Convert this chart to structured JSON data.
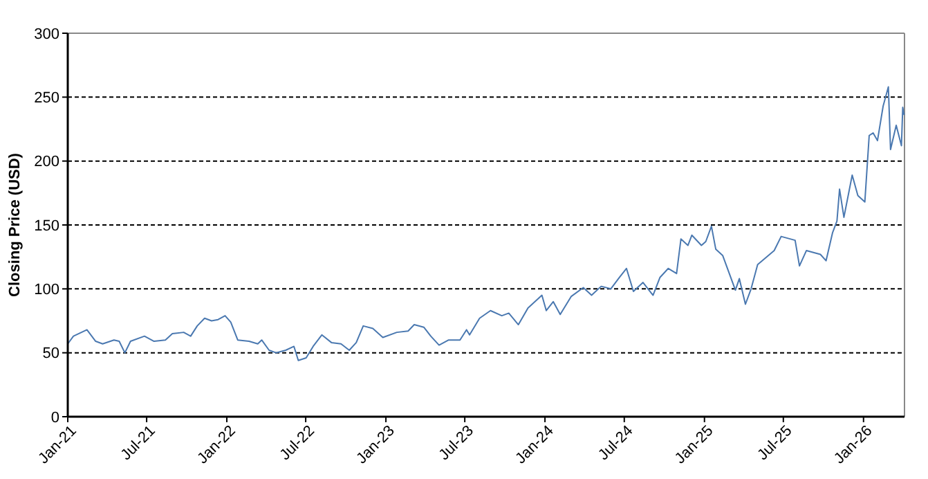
{
  "chart_data": {
    "type": "line",
    "ylabel": "Closing Price (USD)",
    "xlim": [
      "2021-01-01",
      "2026-04-05"
    ],
    "ylim": [
      0,
      300
    ],
    "yticks": [
      0,
      50,
      100,
      150,
      200,
      250,
      300
    ],
    "xticks": [
      {
        "value": "2021-01-01",
        "label": "Jan-21"
      },
      {
        "value": "2021-07-01",
        "label": "Jul-21"
      },
      {
        "value": "2022-01-01",
        "label": "Jan-22"
      },
      {
        "value": "2022-07-01",
        "label": "Jul-22"
      },
      {
        "value": "2023-01-01",
        "label": "Jan-23"
      },
      {
        "value": "2023-07-01",
        "label": "Jul-23"
      },
      {
        "value": "2024-01-01",
        "label": "Jan-24"
      },
      {
        "value": "2024-07-01",
        "label": "Jul-24"
      },
      {
        "value": "2025-01-01",
        "label": "Jan-25"
      },
      {
        "value": "2025-07-01",
        "label": "Jul-25"
      },
      {
        "value": "2026-01-01",
        "label": "Jan-26"
      }
    ],
    "grid": "y",
    "line_style": "solid",
    "marker": "none",
    "series": [
      {
        "color": "#4a78b0",
        "x": [
          "2021-01-01",
          "2021-01-14",
          "2021-02-14",
          "2021-03-06",
          "2021-03-22",
          "2021-04-17",
          "2021-04-29",
          "2021-05-12",
          "2021-05-25",
          "2021-06-26",
          "2021-07-18",
          "2021-08-13",
          "2021-08-29",
          "2021-09-24",
          "2021-10-10",
          "2021-10-25",
          "2021-11-11",
          "2021-11-27",
          "2021-12-12",
          "2021-12-28",
          "2022-01-10",
          "2022-01-26",
          "2022-02-21",
          "2022-03-13",
          "2022-03-22",
          "2022-04-08",
          "2022-04-24",
          "2022-05-16",
          "2022-06-04",
          "2022-06-14",
          "2022-07-02",
          "2022-07-18",
          "2022-08-07",
          "2022-08-29",
          "2022-09-20",
          "2022-10-09",
          "2022-10-25",
          "2022-11-10",
          "2022-12-02",
          "2022-12-25",
          "2023-01-26",
          "2023-02-21",
          "2023-03-07",
          "2023-03-29",
          "2023-04-14",
          "2023-05-03",
          "2023-05-25",
          "2023-06-20",
          "2023-07-05",
          "2023-07-12",
          "2023-08-04",
          "2023-08-29",
          "2023-09-24",
          "2023-10-10",
          "2023-11-01",
          "2023-11-23",
          "2023-12-25",
          "2024-01-04",
          "2024-01-20",
          "2024-02-05",
          "2024-03-01",
          "2024-03-29",
          "2024-04-17",
          "2024-05-09",
          "2024-05-31",
          "2024-06-20",
          "2024-07-06",
          "2024-07-22",
          "2024-08-13",
          "2024-09-05",
          "2024-09-21",
          "2024-10-10",
          "2024-10-29",
          "2024-11-08",
          "2024-11-24",
          "2024-12-03",
          "2024-12-25",
          "2025-01-04",
          "2025-01-17",
          "2025-01-27",
          "2025-02-12",
          "2025-02-27",
          "2025-03-13",
          "2025-03-22",
          "2025-04-05",
          "2025-04-18",
          "2025-05-03",
          "2025-06-10",
          "2025-06-26",
          "2025-07-28",
          "2025-08-07",
          "2025-08-23",
          "2025-09-24",
          "2025-10-07",
          "2025-10-22",
          "2025-11-01",
          "2025-11-07",
          "2025-11-17",
          "2025-12-06",
          "2025-12-19",
          "2026-01-04",
          "2026-01-14",
          "2026-01-23",
          "2026-02-02",
          "2026-02-15",
          "2026-02-27",
          "2026-03-04",
          "2026-03-17",
          "2026-03-29",
          "2026-04-01",
          "2026-04-04"
        ],
        "values": [
          57,
          63,
          68,
          59,
          57,
          60,
          59,
          50,
          59,
          63,
          59,
          60,
          65,
          66,
          63,
          71,
          77,
          75,
          76,
          79,
          74,
          60,
          59,
          57,
          60,
          52,
          50,
          52,
          55,
          44,
          46,
          55,
          64,
          58,
          57,
          52,
          58,
          71,
          69,
          62,
          66,
          67,
          72,
          70,
          63,
          56,
          60,
          60,
          68,
          64,
          77,
          83,
          79,
          81,
          72,
          85,
          95,
          83,
          90,
          80,
          94,
          101,
          95,
          102,
          100,
          109,
          116,
          98,
          105,
          95,
          109,
          116,
          112,
          139,
          134,
          142,
          134,
          137,
          149,
          131,
          126,
          112,
          99,
          108,
          88,
          100,
          119,
          130,
          141,
          138,
          118,
          130,
          127,
          122,
          144,
          153,
          178,
          156,
          189,
          173,
          168,
          220,
          222,
          216,
          243,
          258,
          209,
          228,
          212,
          242,
          236
        ]
      }
    ]
  }
}
